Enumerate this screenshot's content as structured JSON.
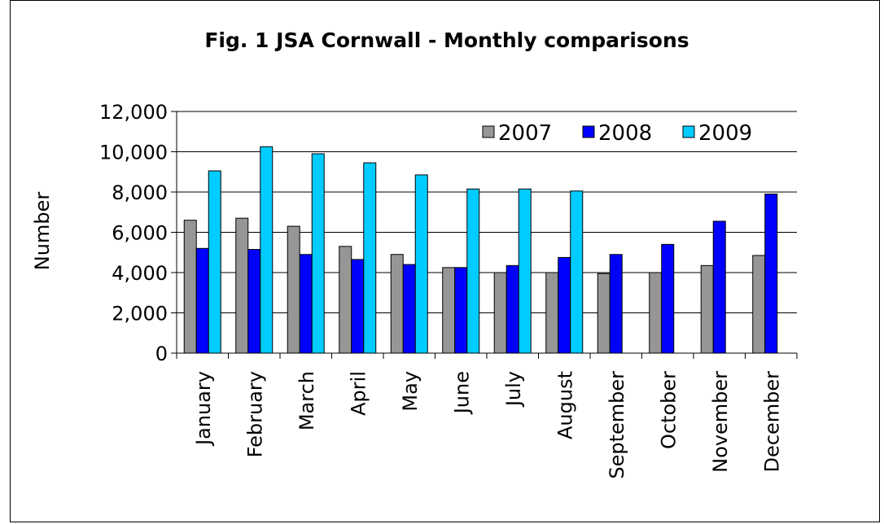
{
  "chart_data": {
    "type": "bar",
    "title": "Fig. 1  JSA Cornwall - Monthly comparisons",
    "xlabel": "",
    "ylabel": "Number",
    "ylim": [
      0,
      12000
    ],
    "yticks": [
      "0",
      "2,000",
      "4,000",
      "6,000",
      "8,000",
      "10,000",
      "12,000"
    ],
    "grid": "horizontal",
    "legend_position": "top-right",
    "categories": [
      "January",
      "February",
      "March",
      "April",
      "May",
      "June",
      "July",
      "August",
      "September",
      "October",
      "November",
      "December"
    ],
    "series": [
      {
        "name": "2007",
        "color": "#969696",
        "values": [
          6600,
          6700,
          6300,
          5300,
          4900,
          4250,
          4000,
          4000,
          3950,
          4000,
          4350,
          4850
        ]
      },
      {
        "name": "2008",
        "color": "#0000ff",
        "values": [
          5200,
          5150,
          4900,
          4650,
          4400,
          4250,
          4350,
          4750,
          4900,
          5400,
          6550,
          7900
        ]
      },
      {
        "name": "2009",
        "color": "#00ccff",
        "values": [
          9050,
          10250,
          9900,
          9450,
          8850,
          8150,
          8150,
          8050,
          null,
          null,
          null,
          null
        ]
      }
    ]
  }
}
